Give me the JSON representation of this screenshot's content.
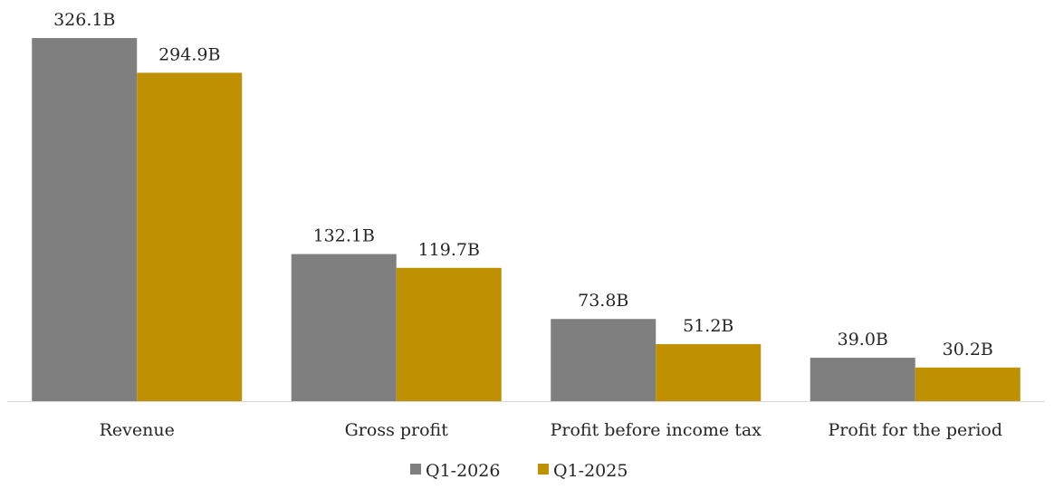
{
  "chart_data": {
    "type": "bar",
    "categories": [
      "Revenue",
      "Gross profit",
      "Profit before income tax",
      "Profit for the period"
    ],
    "series": [
      {
        "name": "Q1-2026",
        "values": [
          326.1,
          132.1,
          73.8,
          39.0
        ],
        "labels": [
          "326.1B",
          "132.1B",
          "73.8B",
          "39.0B"
        ],
        "color": "#7f7f7f"
      },
      {
        "name": "Q1-2025",
        "values": [
          294.9,
          119.7,
          51.2,
          30.2
        ],
        "labels": [
          "294.9B",
          "119.7B",
          "51.2B",
          "30.2B"
        ],
        "color": "#bf9000"
      }
    ],
    "title": "",
    "xlabel": "",
    "ylabel": "",
    "ylim": [
      0,
      326.1
    ],
    "grid": false,
    "legend_position": "bottom"
  }
}
